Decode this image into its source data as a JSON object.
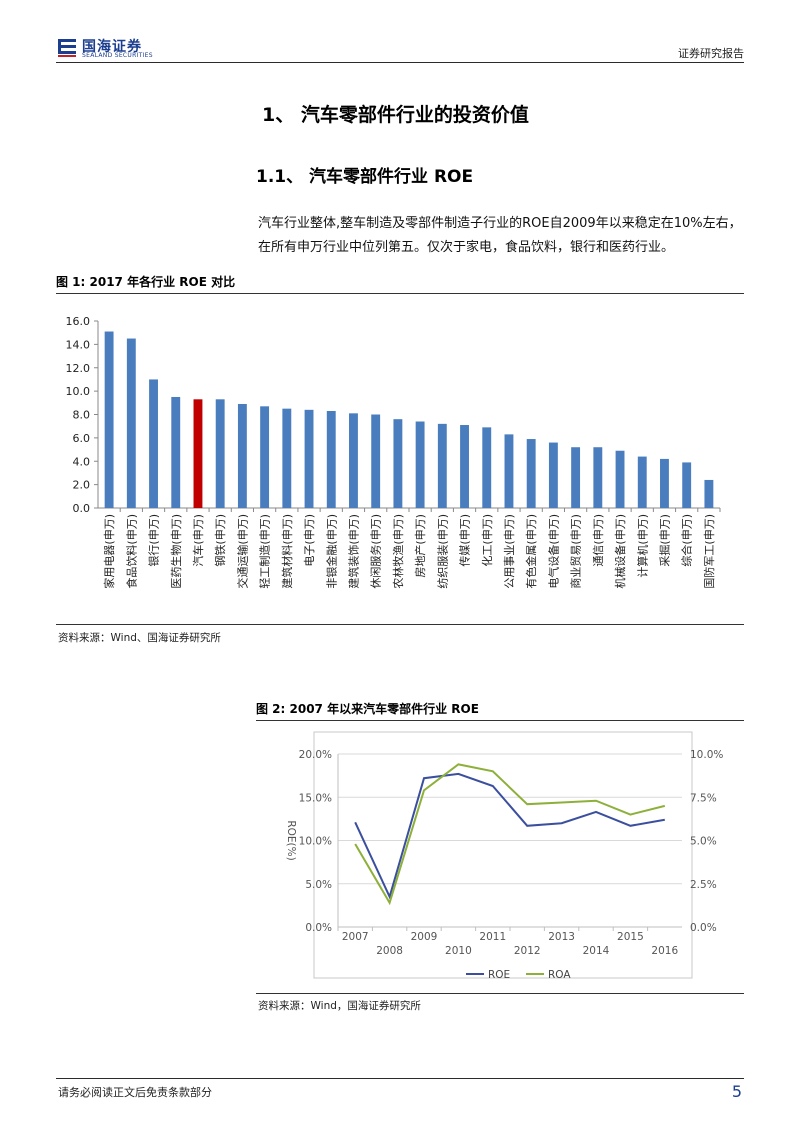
{
  "header": {
    "logo_cn": "国海证券",
    "logo_en": "SEALAND SECURITIES",
    "report_type": "证券研究报告"
  },
  "section": {
    "h1": "1、 汽车零部件行业的投资价值",
    "h2": "1.1、 汽车零部件行业 ROE",
    "paragraph": "汽车行业整体,整车制造及零部件制造子行业的ROE自2009年以来稳定在10%左右，在所有申万行业中位列第五。仅次于家电，食品饮料，银行和医药行业。"
  },
  "figure1": {
    "title": "图 1:  2017 年各行业 ROE 对比",
    "source": "资料来源：Wind、国海证券研究所"
  },
  "figure2": {
    "title": "图 2:  2007 年以来汽车零部件行业 ROE",
    "source": "资料来源：Wind，国海证券研究所"
  },
  "chart_data": [
    {
      "type": "bar",
      "title": "",
      "xlabel": "",
      "ylabel": "",
      "ylim": [
        0,
        16
      ],
      "yticks": [
        "16.0",
        "14.0",
        "12.0",
        "10.0",
        "8.0",
        "6.0",
        "4.0",
        "2.0",
        "0.0"
      ],
      "grid": false,
      "bar_color": "#4a7dbe",
      "highlight_color": "#c00000",
      "highlight_index": 4,
      "categories": [
        "家用电器(申万)",
        "食品饮料(申万)",
        "银行(申万)",
        "医药生物(申万)",
        "汽车(申万)",
        "钢铁(申万)",
        "交通运输(申万)",
        "轻工制造(申万)",
        "建筑材料(申万)",
        "电子(申万)",
        "非银金融(申万)",
        "建筑装饰(申万)",
        "休闲服务(申万)",
        "农林牧渔(申万)",
        "房地产(申万)",
        "纺织服装(申万)",
        "传媒(申万)",
        "化工(申万)",
        "公用事业(申万)",
        "有色金属(申万)",
        "电气设备(申万)",
        "商业贸易(申万)",
        "通信(申万)",
        "机械设备(申万)",
        "计算机(申万)",
        "采掘(申万)",
        "综合(申万)",
        "国防军工(申万)"
      ],
      "values": [
        15.1,
        14.5,
        11.0,
        9.5,
        9.3,
        9.3,
        8.9,
        8.7,
        8.5,
        8.4,
        8.3,
        8.1,
        8.0,
        7.6,
        7.4,
        7.2,
        7.1,
        6.9,
        6.3,
        5.9,
        5.6,
        5.2,
        5.2,
        4.9,
        4.4,
        4.2,
        3.9,
        2.4
      ]
    },
    {
      "type": "line",
      "title": "",
      "ylabel": "ROE(%)",
      "x": [
        "2007",
        "2008",
        "2009",
        "2010",
        "2011",
        "2012",
        "2013",
        "2014",
        "2015",
        "2016"
      ],
      "ylim_left": [
        0,
        20
      ],
      "ylim_right": [
        0,
        10
      ],
      "yticks_left": [
        "20.0%",
        "15.0%",
        "10.0%",
        "5.0%",
        "0.0%"
      ],
      "yticks_right": [
        "10.0%",
        "7.5%",
        "5.0%",
        "2.5%",
        "0.0%"
      ],
      "grid": true,
      "legend_position": "bottom",
      "series": [
        {
          "name": "ROE",
          "axis": "left",
          "color": "#3b4f9e",
          "values": [
            12.1,
            3.5,
            17.2,
            17.7,
            16.3,
            11.7,
            12.0,
            13.3,
            11.7,
            12.4
          ]
        },
        {
          "name": "ROA",
          "axis": "right",
          "color": "#8db03a",
          "values": [
            4.8,
            1.4,
            7.9,
            9.4,
            9.0,
            7.1,
            7.2,
            7.3,
            6.5,
            7.0
          ]
        }
      ]
    }
  ],
  "footer": {
    "disclaimer": "请务必阅读正文后免责条款部分",
    "page_number": "5"
  }
}
